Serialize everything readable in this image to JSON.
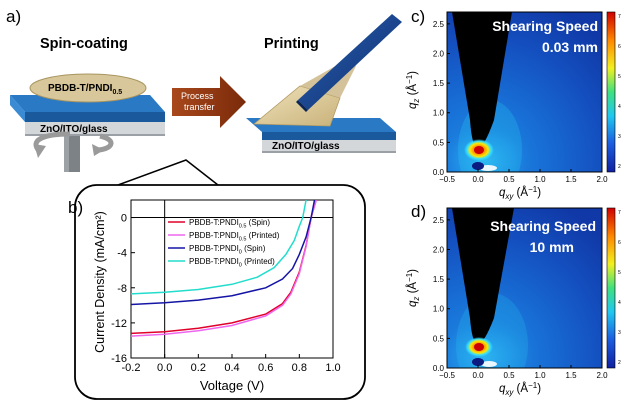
{
  "panels": {
    "a": "a)",
    "b": "b)",
    "c": "c)",
    "d": "d)"
  },
  "schematic": {
    "spin_title": "Spin-coating",
    "print_title": "Printing",
    "blend_label_main": "PBDB-T/PNDI",
    "blend_label_sub": "0.5",
    "substrate_label": "ZnO/ITO/glass",
    "process_line1": "Process",
    "process_line2": "transfer",
    "colors": {
      "blue": "#1f6fb8",
      "film": "#d8c79a",
      "arrow": "#8b3410"
    }
  },
  "chart_data": {
    "type": "line",
    "xlabel": "Voltage (V)",
    "ylabel": "Current Density (mA/cm²)",
    "xlim": [
      -0.2,
      1.0
    ],
    "ylim": [
      -16,
      2
    ],
    "x_ticks": [
      "-0.2",
      "0.0",
      "0.2",
      "0.4",
      "0.6",
      "0.8",
      "1.0"
    ],
    "y_ticks": [
      "0",
      "-4",
      "-8",
      "-12",
      "-16"
    ],
    "series": [
      {
        "name": "PBDB-T:PNDI",
        "sub": "0.5",
        "suffix": " (Spin)",
        "color": "#e0002a",
        "x": [
          -0.2,
          0.0,
          0.2,
          0.4,
          0.6,
          0.7,
          0.75,
          0.8,
          0.84,
          0.87,
          0.9
        ],
        "y": [
          -13.2,
          -13.0,
          -12.6,
          -12.0,
          -11.0,
          -9.8,
          -8.5,
          -6.2,
          -3.2,
          0.0,
          2.0
        ]
      },
      {
        "name": "PBDB-T:PNDI",
        "sub": "0.5",
        "suffix": " (Printed)",
        "color": "#ee66ee",
        "x": [
          -0.2,
          0.0,
          0.2,
          0.4,
          0.6,
          0.7,
          0.75,
          0.8,
          0.84,
          0.87,
          0.9
        ],
        "y": [
          -13.5,
          -13.3,
          -12.9,
          -12.3,
          -11.2,
          -10.0,
          -8.7,
          -6.4,
          -3.3,
          0.0,
          2.0
        ]
      },
      {
        "name": "PBDB-T:PNDI",
        "sub": "0",
        "suffix": " (Spin)",
        "color": "#1515a5",
        "x": [
          -0.2,
          0.0,
          0.2,
          0.4,
          0.6,
          0.7,
          0.76,
          0.8,
          0.84,
          0.87,
          0.89
        ],
        "y": [
          -9.9,
          -9.7,
          -9.4,
          -8.9,
          -8.0,
          -7.0,
          -5.8,
          -4.2,
          -2.2,
          0.0,
          2.0
        ]
      },
      {
        "name": "PBDB-T:PNDI",
        "sub": "0",
        "suffix": " (Printed)",
        "color": "#22ddcc",
        "x": [
          -0.2,
          0.0,
          0.2,
          0.4,
          0.55,
          0.65,
          0.72,
          0.77,
          0.8,
          0.82,
          0.84
        ],
        "y": [
          -8.7,
          -8.5,
          -8.2,
          -7.6,
          -6.8,
          -5.7,
          -4.2,
          -2.6,
          -1.0,
          0.0,
          2.0
        ]
      }
    ]
  },
  "giwaxs": {
    "xlabel_main": "q",
    "xlabel_sub": "xy",
    "xlabel_unit": " (Å",
    "xlabel_exp": "−1",
    "xlabel_close": ")",
    "ylabel_main": "q",
    "ylabel_sub": "z",
    "ylabel_unit": " (Å",
    "ylabel_exp": "−1",
    "ylabel_close": ")",
    "x_ticks": [
      "−0.5",
      "0.0",
      "0.5",
      "1.0",
      "1.5",
      "2.0"
    ],
    "y_ticks": [
      "0.0",
      "0.5",
      "1.0",
      "1.5",
      "2.0",
      "2.5"
    ],
    "colorbar_ticks": [
      "7",
      "6",
      "5",
      "4",
      "3",
      "2"
    ],
    "c": {
      "title": "Shearing Speed",
      "value": "0.03 mm"
    },
    "d": {
      "title": "Shearing Speed",
      "value": "10 mm"
    }
  }
}
